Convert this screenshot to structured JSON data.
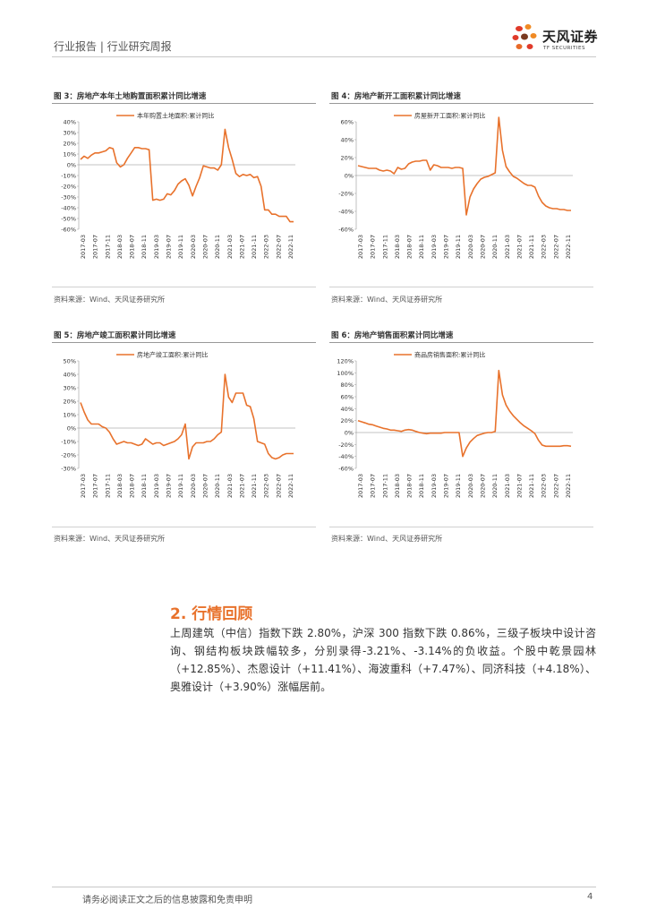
{
  "header": {
    "title": "行业报告 | 行业研究周报",
    "logo_cn": "天风证券",
    "logo_en": "TF SECURITIES"
  },
  "colors": {
    "accent": "#e8722c",
    "line": "#e8722c"
  },
  "figures": [
    {
      "title": "图 3：房地产本年土地购置面积累计同比增速",
      "source": "资料来源：Wind、天风证券研究所"
    },
    {
      "title": "图 4：房地产新开工面积累计同比增速",
      "source": "资料来源：Wind、天风证券研究所"
    },
    {
      "title": "图 5：房地产竣工面积累计同比增速",
      "source": "资料来源：Wind、天风证券研究所"
    },
    {
      "title": "图 6：房地产销售面积累计同比增速",
      "source": "资料来源：Wind、天风证券研究所"
    }
  ],
  "chart_data": [
    {
      "type": "line",
      "legend": "本年购置土地面积:累计同比",
      "yticks": [
        "40%",
        "30%",
        "20%",
        "10%",
        "0%",
        "-10%",
        "-20%",
        "-30%",
        "-40%",
        "-50%",
        "-60%"
      ],
      "ylim": [
        -60,
        40
      ],
      "xticks": [
        "2017-03",
        "2017-07",
        "2017-11",
        "2018-03",
        "2018-07",
        "2018-11",
        "2019-03",
        "2019-07",
        "2019-11",
        "2020-03",
        "2020-07",
        "2020-11",
        "2021-03",
        "2021-07",
        "2021-11",
        "2022-03",
        "2022-07",
        "2022-11"
      ],
      "values": [
        5,
        8,
        6,
        9,
        11,
        11,
        12,
        13,
        16,
        15,
        2,
        -2,
        0,
        6,
        11,
        16,
        16,
        15,
        15,
        14,
        -33,
        -32,
        -33,
        -32,
        -27,
        -28,
        -24,
        -18,
        -15,
        -13,
        -19,
        -29,
        -20,
        -12,
        -1,
        -2,
        -3,
        -3,
        -5,
        0,
        33,
        16,
        5,
        -8,
        -11,
        -9,
        -10,
        -9,
        -12,
        -11,
        -20,
        -42,
        -42,
        -46,
        -46,
        -48,
        -48,
        -48,
        -53,
        -53
      ]
    },
    {
      "type": "line",
      "legend": "房屋新开工面积:累计同比",
      "yticks": [
        "60%",
        "40%",
        "20%",
        "0%",
        "-20%",
        "-40%",
        "-60%"
      ],
      "ylim": [
        -60,
        60
      ],
      "xticks": [
        "2017-03",
        "2017-07",
        "2017-11",
        "2018-03",
        "2018-07",
        "2018-11",
        "2019-03",
        "2019-07",
        "2019-11",
        "2020-03",
        "2020-07",
        "2020-11",
        "2021-03",
        "2021-07",
        "2021-11",
        "2022-03",
        "2022-07",
        "2022-11"
      ],
      "values": [
        11,
        10,
        9,
        8,
        8,
        8,
        6,
        5,
        6,
        5,
        2,
        9,
        7,
        8,
        13,
        15,
        16,
        16,
        17,
        17,
        6,
        12,
        11,
        9,
        9,
        9,
        8,
        9,
        9,
        8,
        -44,
        -24,
        -15,
        -9,
        -4,
        -2,
        -1,
        1,
        3,
        65,
        28,
        10,
        4,
        -1,
        -3,
        -6,
        -9,
        -11,
        -11,
        -13,
        -23,
        -30,
        -34,
        -36,
        -37,
        -37,
        -38,
        -38,
        -39,
        -39
      ]
    },
    {
      "type": "line",
      "legend": "房地产竣工面积:累计同比",
      "yticks": [
        "50%",
        "40%",
        "30%",
        "20%",
        "10%",
        "0%",
        "-10%",
        "-20%",
        "-30%"
      ],
      "ylim": [
        -30,
        50
      ],
      "xticks": [
        "2017-03",
        "2017-07",
        "2017-11",
        "2018-03",
        "2018-07",
        "2018-11",
        "2019-03",
        "2019-07",
        "2019-11",
        "2020-03",
        "2020-07",
        "2020-11",
        "2021-03",
        "2021-07",
        "2021-11",
        "2022-03",
        "2022-07",
        "2022-11"
      ],
      "values": [
        19,
        12,
        6,
        3,
        3,
        3,
        1,
        0,
        -3,
        -8,
        -12,
        -11,
        -10,
        -11,
        -11,
        -12,
        -13,
        -12,
        -8,
        -10,
        -12,
        -11,
        -11,
        -13,
        -12,
        -11,
        -10,
        -8,
        -5,
        3,
        -23,
        -14,
        -11,
        -11,
        -11,
        -10,
        -10,
        -8,
        -5,
        -3,
        40,
        23,
        19,
        26,
        26,
        26,
        17,
        16,
        7,
        -10,
        -11,
        -12,
        -19,
        -22,
        -23,
        -22,
        -20,
        -19,
        -19,
        -19
      ]
    },
    {
      "type": "line",
      "legend": "商品房销售面积:累计同比",
      "yticks": [
        "120%",
        "100%",
        "80%",
        "60%",
        "40%",
        "20%",
        "0%",
        "-20%",
        "-40%",
        "-60%"
      ],
      "ylim": [
        -60,
        120
      ],
      "xticks": [
        "2017-03",
        "2017-07",
        "2017-11",
        "2018-03",
        "2018-07",
        "2018-11",
        "2019-03",
        "2019-07",
        "2019-11",
        "2020-03",
        "2020-07",
        "2020-11",
        "2021-03",
        "2021-07",
        "2021-11",
        "2022-03",
        "2022-07",
        "2022-11"
      ],
      "values": [
        20,
        18,
        16,
        14,
        13,
        11,
        9,
        7,
        6,
        4,
        4,
        3,
        2,
        4,
        5,
        4,
        2,
        0,
        -1,
        -2,
        -1,
        -1,
        -1,
        -1,
        0,
        0,
        0,
        0,
        0,
        -40,
        -26,
        -16,
        -10,
        -5,
        -3,
        -1,
        0,
        0,
        2,
        104,
        63,
        46,
        36,
        28,
        22,
        16,
        11,
        7,
        3,
        -2,
        -13,
        -21,
        -23,
        -23,
        -23,
        -23,
        -23,
        -22,
        -22,
        -23
      ]
    }
  ],
  "section": {
    "title": "2. 行情回顾"
  },
  "paragraph": "上周建筑（中信）指数下跌 2.80%，沪深 300 指数下跌 0.86%，三级子板块中设计咨询、钢结构板块跌幅较多，分别录得-3.21%、-3.14%的负收益。个股中乾景园林（+12.85%）、杰恩设计（+11.41%）、海波重科（+7.47%）、同济科技（+4.18%）、奥雅设计（+3.90%）涨幅居前。",
  "footer": {
    "disclaimer": "请务必阅读正文之后的信息披露和免责申明",
    "page": "4"
  }
}
